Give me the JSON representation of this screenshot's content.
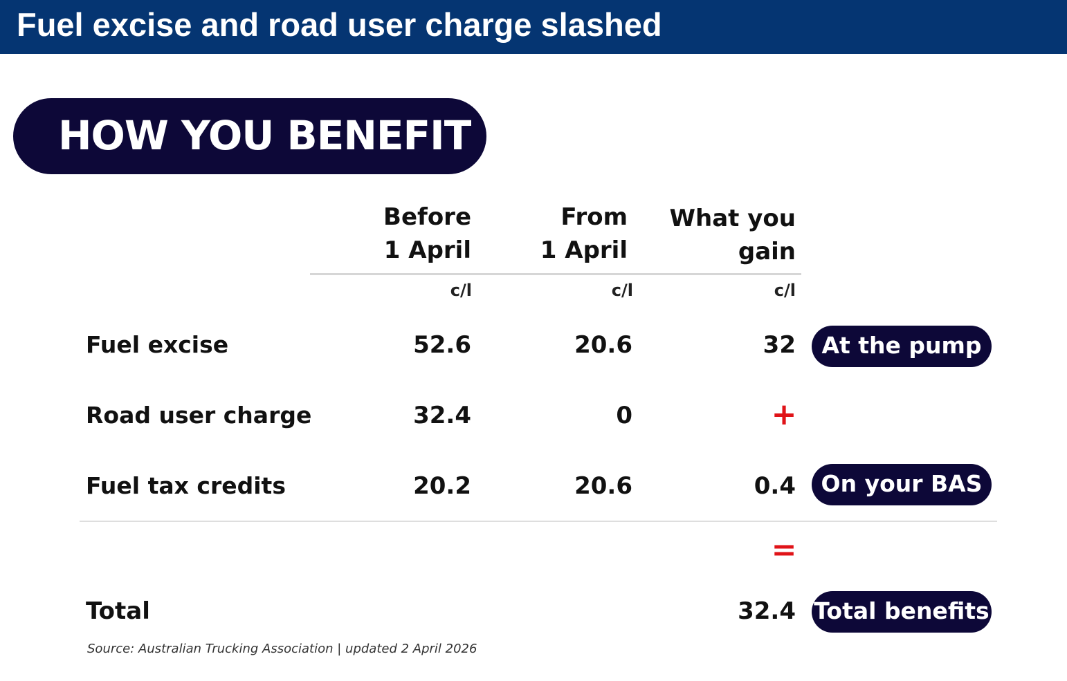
{
  "header": {
    "title": "Fuel excise and road user charge slashed"
  },
  "banner": {
    "label": "HOW YOU BENEFIT"
  },
  "columns": [
    {
      "line1": "Before",
      "line2": "1 April",
      "unit": "c/l"
    },
    {
      "line1": "From",
      "line2": "1 April",
      "unit": "c/l"
    },
    {
      "line1": "What you",
      "line2": "gain",
      "unit": "c/l"
    }
  ],
  "rows": [
    {
      "label": "Fuel excise",
      "before": "52.6",
      "from": "20.6",
      "gain": "32",
      "tag": "At the pump"
    },
    {
      "label": "Road user charge",
      "before": "32.4",
      "from": "0",
      "operator": "+"
    },
    {
      "label": "Fuel tax credits",
      "before": "20.2",
      "from": "20.6",
      "gain": "0.4",
      "tag": "On your BAS"
    }
  ],
  "equals": "=",
  "total": {
    "label": "Total",
    "value": "32.4",
    "tag": "Total benefits"
  },
  "source": "Source: Australian Trucking Association | updated 2 April 2026",
  "colors": {
    "title_bar": "#053572",
    "pill": "#0d0838",
    "operator": "#e01318"
  }
}
